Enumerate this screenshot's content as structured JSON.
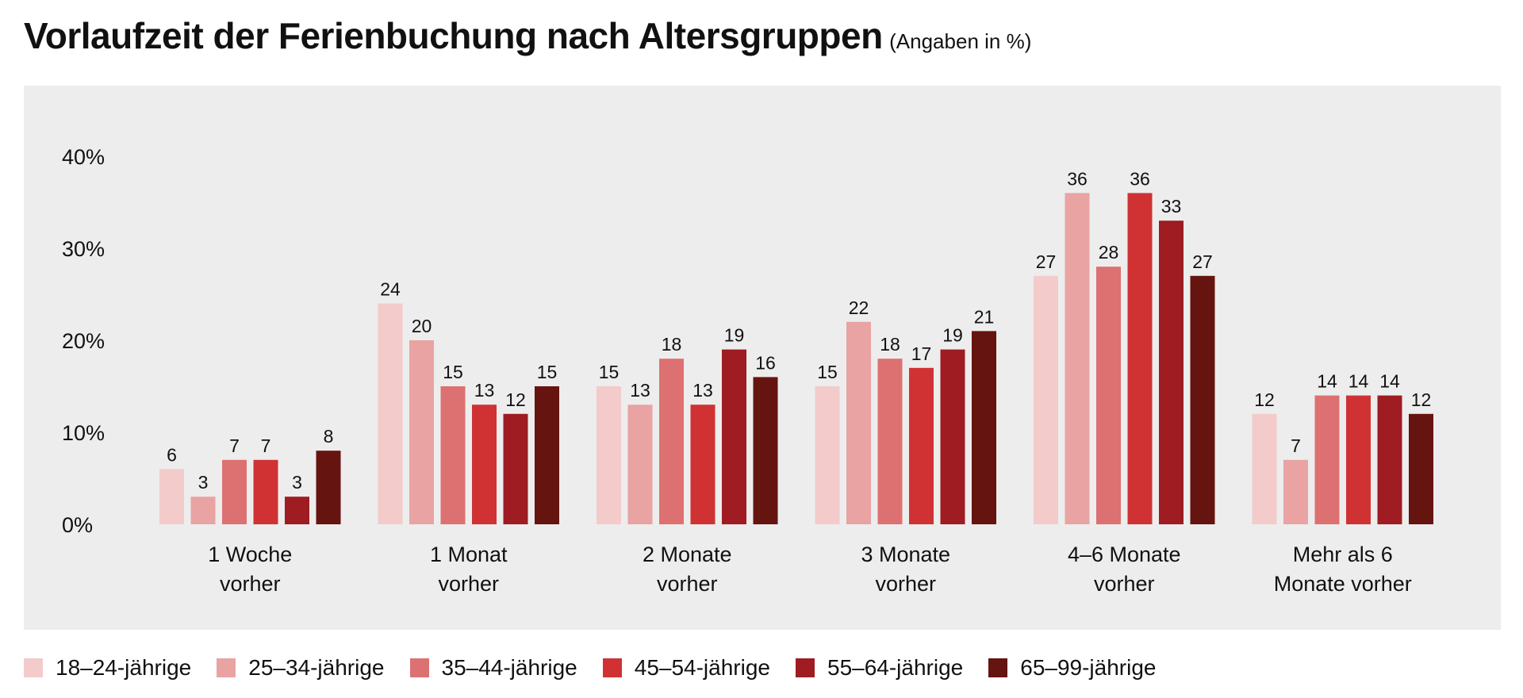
{
  "header": {
    "title": "Vorlaufzeit der Ferienbuchung nach Altersgruppen",
    "subtitle": "(Angaben in %)"
  },
  "legend": {
    "items": [
      {
        "label": "18–24-jährige",
        "color": "#f3cbcb"
      },
      {
        "label": "25–34-jährige",
        "color": "#e9a3a3"
      },
      {
        "label": "35–44-jährige",
        "color": "#dd7171"
      },
      {
        "label": "45–54-jährige",
        "color": "#d03234"
      },
      {
        "label": "55–64-jährige",
        "color": "#9e1c22"
      },
      {
        "label": "65–99-jährige",
        "color": "#65140f"
      }
    ]
  },
  "chart_data": {
    "type": "bar",
    "title": "Vorlaufzeit der Ferienbuchung nach Altersgruppen",
    "subtitle": "(Angaben in %)",
    "xlabel": "",
    "ylabel": "",
    "ylim": [
      0,
      40
    ],
    "yticks": [
      0,
      10,
      20,
      30,
      40
    ],
    "ytick_labels": [
      "0%",
      "10%",
      "20%",
      "30%",
      "40%"
    ],
    "grid": false,
    "legend_position": "bottom",
    "categories": [
      [
        "1 Woche",
        "vorher"
      ],
      [
        "1 Monat",
        "vorher"
      ],
      [
        "2 Monate",
        "vorher"
      ],
      [
        "3 Monate",
        "vorher"
      ],
      [
        "4–6 Monate",
        "vorher"
      ],
      [
        "Mehr als 6",
        "Monate vorher"
      ]
    ],
    "series": [
      {
        "name": "18–24-jährige",
        "color": "#f3cbcb",
        "values": [
          6,
          24,
          15,
          15,
          27,
          12
        ]
      },
      {
        "name": "25–34-jährige",
        "color": "#e9a3a3",
        "values": [
          3,
          20,
          13,
          22,
          36,
          7
        ]
      },
      {
        "name": "35–44-jährige",
        "color": "#dd7171",
        "values": [
          7,
          15,
          18,
          18,
          28,
          14
        ]
      },
      {
        "name": "45–54-jährige",
        "color": "#d03234",
        "values": [
          7,
          13,
          13,
          17,
          36,
          14
        ]
      },
      {
        "name": "55–64-jährige",
        "color": "#9e1c22",
        "values": [
          3,
          12,
          19,
          19,
          33,
          14
        ]
      },
      {
        "name": "65–99-jährige",
        "color": "#65140f",
        "values": [
          8,
          15,
          16,
          21,
          27,
          12
        ]
      }
    ]
  }
}
